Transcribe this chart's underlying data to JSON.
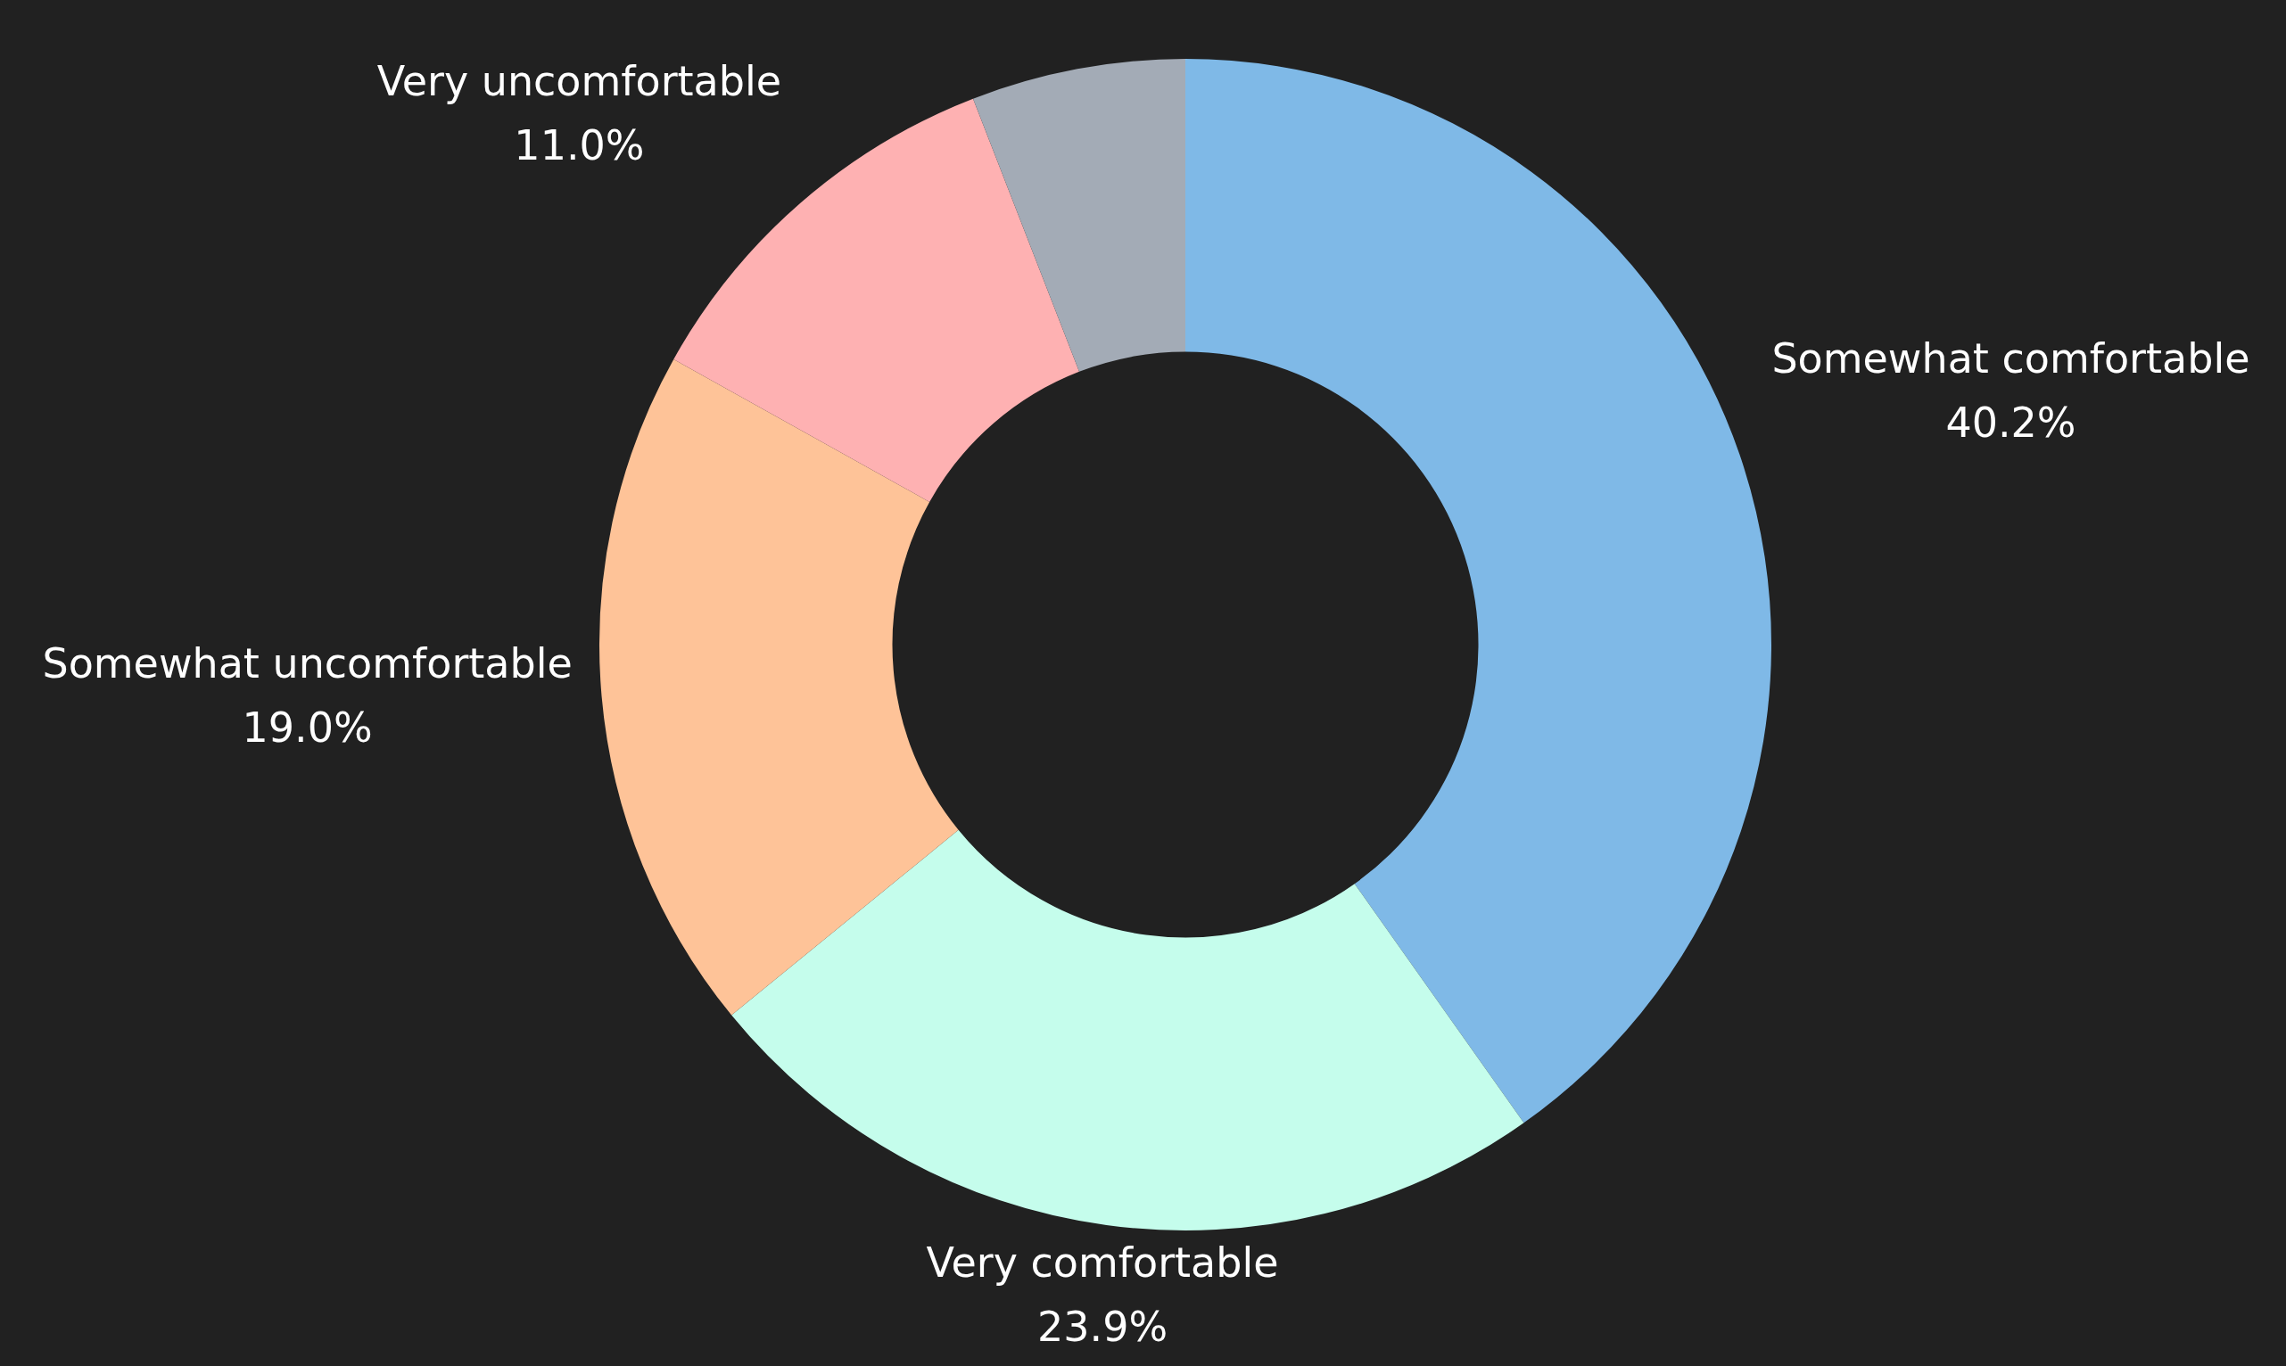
{
  "chart_data": {
    "type": "donut",
    "categories": [
      "Somewhat comfortable",
      "Very comfortable",
      "Somewhat uncomfortable",
      "Very uncomfortable",
      null
    ],
    "values": [
      40.2,
      23.9,
      19.0,
      11.0,
      5.9
    ],
    "colors": [
      "#7fb9e7",
      "#c5fdec",
      "#fec398",
      "#feb1b2",
      "#a3abb6"
    ],
    "value_labels": [
      "40.2%",
      "23.9%",
      "19.0%",
      "11.0%",
      null
    ]
  }
}
